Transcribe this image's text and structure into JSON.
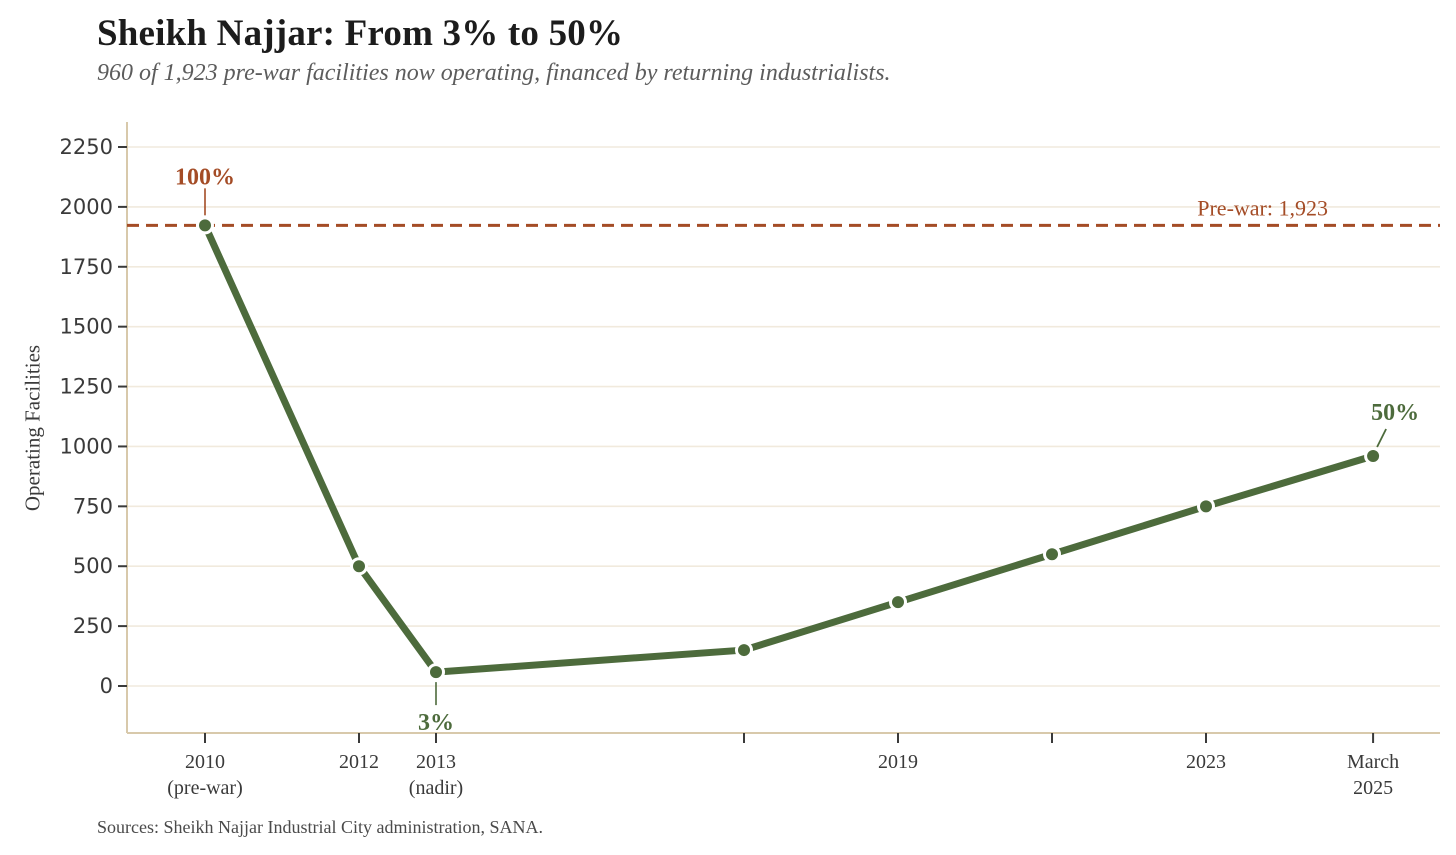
{
  "header": {
    "title": "Sheikh Najjar: From 3% to 50%",
    "subtitle": "960 of 1,923 pre-war facilities now operating, financed by returning industrialists."
  },
  "footer": {
    "source": "Sources: Sheikh Najjar Industrial City administration, SANA."
  },
  "colors": {
    "line_green": "#4d6b3c",
    "accent_brown": "#a44c26",
    "grid": "#f1eadd",
    "spine": "#d8c9ab",
    "tick": "#3a3a3a",
    "marker_ring": "#ffffff"
  },
  "chart_data": {
    "type": "line",
    "title": "Sheikh Najjar: From 3% to 50%",
    "subtitle": "960 of 1,923 pre-war facilities now operating, financed by returning industrialists.",
    "xlabel": "",
    "ylabel": "Operating Facilities",
    "ylim": [
      0,
      2250
    ],
    "yticks": [
      0,
      250,
      500,
      750,
      1000,
      1250,
      1500,
      1750,
      2000,
      2250
    ],
    "grid": true,
    "series": [
      {
        "name": "Operating facilities",
        "color": "#4d6b3c",
        "points": [
          {
            "x": 2010,
            "y": 1923
          },
          {
            "x": 2012,
            "y": 500
          },
          {
            "x": 2013,
            "y": 58
          },
          {
            "x": 2017,
            "y": 150
          },
          {
            "x": 2019,
            "y": 350
          },
          {
            "x": 2021,
            "y": 550
          },
          {
            "x": 2023,
            "y": 750
          },
          {
            "x": 2025.17,
            "y": 960
          }
        ]
      }
    ],
    "x_ticks": [
      {
        "x": 2010,
        "label": [
          "2010",
          "(pre-war)"
        ]
      },
      {
        "x": 2012,
        "label": [
          "2012"
        ]
      },
      {
        "x": 2013,
        "label": [
          "2013",
          "(nadir)"
        ]
      },
      {
        "x": 2017,
        "label": []
      },
      {
        "x": 2019,
        "label": [
          "2019"
        ]
      },
      {
        "x": 2021,
        "label": []
      },
      {
        "x": 2023,
        "label": [
          "2023"
        ]
      },
      {
        "x": 2025.17,
        "label": [
          "March",
          "2025"
        ]
      }
    ],
    "reference_line": {
      "value": 1923,
      "label": "Pre-war: 1,923",
      "color": "#a44c26",
      "style": "dashed"
    },
    "annotations": [
      {
        "text": "100%",
        "x": 2010,
        "y": 1923,
        "color": "#a44c26",
        "placement": "above"
      },
      {
        "text": "3%",
        "x": 2013,
        "y": 58,
        "color": "#4d6b3c",
        "placement": "below"
      },
      {
        "text": "50%",
        "x": 2025.17,
        "y": 960,
        "color": "#4d6b3c",
        "placement": "above-right"
      }
    ],
    "legend": false
  }
}
